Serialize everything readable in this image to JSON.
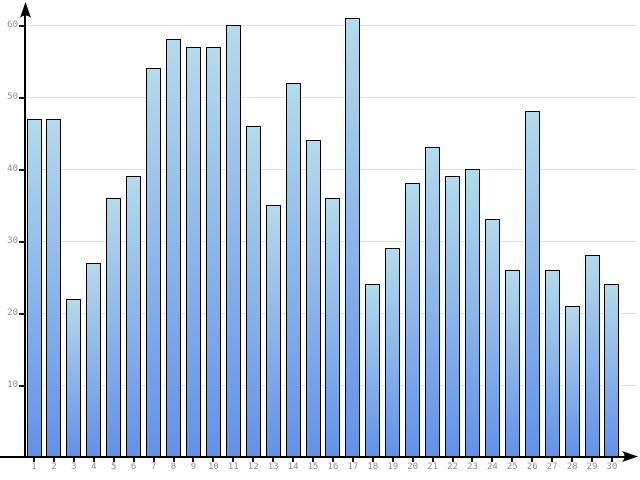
{
  "chart_data": {
    "type": "bar",
    "title": "",
    "xlabel": "",
    "ylabel": "",
    "categories": [
      "1",
      "2",
      "3",
      "4",
      "5",
      "6",
      "7",
      "8",
      "9",
      "10",
      "11",
      "12",
      "13",
      "14",
      "15",
      "16",
      "17",
      "18",
      "19",
      "20",
      "21",
      "22",
      "23",
      "24",
      "25",
      "26",
      "27",
      "28",
      "29",
      "30"
    ],
    "values": [
      47,
      47,
      22,
      27,
      36,
      39,
      54,
      58,
      57,
      57,
      60,
      46,
      35,
      52,
      44,
      36,
      61,
      24,
      29,
      38,
      43,
      39,
      40,
      33,
      26,
      48,
      26,
      21,
      28,
      24
    ],
    "yticks": [
      10,
      20,
      30,
      40,
      50,
      60
    ],
    "ylim": [
      0,
      63
    ],
    "grid": true,
    "legend": "none",
    "colors": {
      "bar_gradient_top": "#b5daeb",
      "bar_gradient_bottom": "#6391e9",
      "bar_border": "#000000",
      "gridline": "#e6e6e6",
      "axis": "#000000",
      "tick_label": "#8f8f8f",
      "background": "#ffffff"
    }
  }
}
